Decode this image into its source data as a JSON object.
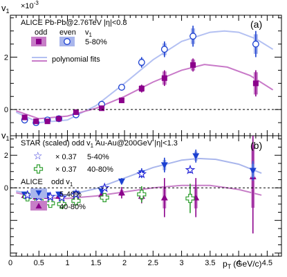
{
  "chart_data": [
    {
      "type": "scatter",
      "panel_label": "(a)",
      "ylabel": "v",
      "ylabel_sub": "1",
      "y_exponent": "×10",
      "y_exponent_power": "-3",
      "ylim": [
        -1.0,
        3.6
      ],
      "xlim": [
        0,
        4.75
      ],
      "y_ticks": [
        "0",
        "2"
      ],
      "y_tick_values": [
        0,
        2
      ],
      "header": "ALICE Pb-Pb@2.76TeV |η|<0.8",
      "legend": {
        "odd_label": "odd",
        "even_label": "even",
        "v1_label": "v",
        "v1_sub": "1",
        "centrality": "5-80%",
        "fit_label": "polynomial fits"
      },
      "colors": {
        "odd": "#8b008b",
        "odd_sys": "#c77ec7",
        "even": "#1a3fd1",
        "even_sys": "#a9b6ec",
        "odd_fit": "#c879c8",
        "even_fit": "#b3c0f2"
      },
      "series": [
        {
          "name": "odd",
          "marker": "filled-square",
          "x": [
            0.25,
            0.45,
            0.65,
            0.85,
            1.15,
            1.6,
            1.95,
            2.3,
            2.7,
            3.2,
            4.3
          ],
          "y": [
            -0.3,
            -0.45,
            -0.45,
            -0.35,
            -0.1,
            0.05,
            0.35,
            0.8,
            1.2,
            1.7,
            1.0
          ],
          "yerr": [
            0.05,
            0.05,
            0.05,
            0.05,
            0.05,
            0.06,
            0.1,
            0.15,
            0.3,
            0.25,
            0.5
          ]
        },
        {
          "name": "even",
          "marker": "open-circle",
          "x": [
            0.25,
            0.45,
            0.65,
            0.85,
            1.15,
            1.6,
            1.95,
            2.3,
            2.7,
            3.2,
            4.3
          ],
          "y": [
            -0.4,
            -0.5,
            -0.4,
            -0.35,
            -0.2,
            0.2,
            0.85,
            1.8,
            2.3,
            2.8,
            2.5
          ],
          "yerr": [
            0.06,
            0.06,
            0.06,
            0.06,
            0.06,
            0.07,
            0.12,
            0.2,
            0.3,
            0.4,
            0.5
          ]
        }
      ],
      "fits": [
        {
          "name": "odd",
          "x": [
            0.1,
            0.5,
            1.0,
            1.5,
            2.0,
            2.5,
            3.0,
            3.4,
            3.8,
            4.2,
            4.6
          ],
          "y": [
            -0.05,
            -0.35,
            -0.25,
            0.05,
            0.5,
            1.05,
            1.5,
            1.72,
            1.62,
            1.3,
            0.75
          ]
        },
        {
          "name": "even",
          "x": [
            0.1,
            0.5,
            1.0,
            1.5,
            2.0,
            2.5,
            3.0,
            3.5,
            3.75,
            4.0,
            4.3,
            4.6
          ],
          "y": [
            -0.1,
            -0.5,
            -0.4,
            0.15,
            1.0,
            1.9,
            2.6,
            2.95,
            3.0,
            2.95,
            2.7,
            2.3
          ]
        }
      ]
    },
    {
      "type": "scatter",
      "panel_label": "(b)",
      "ylabel": "v",
      "ylabel_sub": "1",
      "xlabel": "p",
      "xlabel_sub": "T",
      "xlabel_unit": "(GeV/c)",
      "ylim": [
        -4.2,
        3.2
      ],
      "xlim": [
        0,
        4.75
      ],
      "x_ticks": [
        "0",
        "0.5",
        "1",
        "1.5",
        "2",
        "2.5",
        "3",
        "3.5",
        "4",
        "4.5"
      ],
      "x_tick_values": [
        0,
        0.5,
        1,
        1.5,
        2,
        2.5,
        3,
        3.5,
        4,
        4.5
      ],
      "y_ticks": [
        "0",
        "2"
      ],
      "y_tick_values": [
        0,
        2
      ],
      "header": "STAR (scaled) odd v",
      "header_sub": "1",
      "header_tail": "Au-Au@200GeV |η|<1.3",
      "star_legend": [
        {
          "scale": "× 0.37",
          "centrality": "5-40%"
        },
        {
          "scale": "× 0.37",
          "centrality": "40-80%"
        }
      ],
      "alice_legend": {
        "title": "ALICE",
        "odd_label": "odd v",
        "odd_sub": "1",
        "entries": [
          {
            "centrality": "5-40%"
          },
          {
            "centrality": "40-80%"
          }
        ]
      },
      "colors": {
        "alice_central": "#1a3fd1",
        "alice_central_sys": "#a9b6ec",
        "alice_peripheral": "#8b008b",
        "alice_peripheral_sys": "#c77ec7",
        "star_central": "#2a2ad8",
        "star_peripheral": "#2e9e2e"
      },
      "series": [
        {
          "name": "5-40%",
          "marker": "down-triangle",
          "x": [
            0.25,
            0.45,
            0.65,
            0.85,
            1.15,
            1.6,
            1.95,
            2.3,
            2.7,
            3.25,
            4.25
          ],
          "y": [
            -0.4,
            -0.5,
            -0.45,
            -0.4,
            -0.35,
            -0.2,
            0.4,
            0.9,
            1.4,
            1.95,
            1.05
          ],
          "yerr": [
            0.08,
            0.08,
            0.08,
            0.1,
            0.1,
            0.15,
            0.2,
            0.3,
            0.45,
            0.4,
            0.6
          ]
        },
        {
          "name": "40-80%",
          "marker": "up-triangle",
          "x": [
            0.25,
            0.45,
            0.65,
            0.85,
            1.15,
            1.6,
            1.95,
            2.3,
            2.7,
            3.25,
            4.25
          ],
          "y": [
            -0.45,
            -0.55,
            -0.5,
            -0.5,
            -0.55,
            -0.4,
            -0.3,
            -0.5,
            -0.6,
            -0.6,
            0.7
          ],
          "yerr": [
            0.15,
            0.15,
            0.15,
            0.2,
            0.2,
            0.25,
            0.35,
            0.45,
            1.2,
            1.2,
            3.5
          ]
        },
        {
          "name": "STAR 5-40%",
          "marker": "open-star",
          "x": [
            0.3,
            0.5,
            0.7,
            0.9,
            1.15,
            1.65,
            2.3,
            3.15
          ],
          "y": [
            -0.45,
            -0.55,
            -0.55,
            -0.6,
            -0.4,
            0.0,
            0.85,
            1.1
          ],
          "yerr": [
            0.05,
            0.05,
            0.05,
            0.05,
            0.07,
            0.1,
            0.15,
            0.2
          ]
        },
        {
          "name": "STAR 40-80%",
          "marker": "open-cross",
          "x": [
            0.3,
            0.5,
            0.7,
            0.9,
            1.15,
            1.65,
            2.3,
            3.15
          ],
          "y": [
            -0.55,
            -0.8,
            -0.95,
            -1.0,
            -0.8,
            -0.6,
            -0.4,
            -0.65
          ],
          "yerr": [
            0.08,
            0.08,
            0.08,
            0.1,
            0.12,
            0.2,
            0.5,
            0.9
          ]
        }
      ],
      "fits": [
        {
          "name": "5-40%",
          "x": [
            0.1,
            0.5,
            1.0,
            1.5,
            2.0,
            2.5,
            3.0,
            3.3,
            3.6,
            4.0,
            4.4
          ],
          "y": [
            -0.2,
            -0.5,
            -0.45,
            -0.05,
            0.6,
            1.25,
            1.7,
            1.8,
            1.75,
            1.45,
            0.9
          ]
        },
        {
          "name": "40-80%",
          "x": [
            0.1,
            0.5,
            1.0,
            1.5,
            2.0,
            2.5,
            3.0,
            3.5,
            4.0,
            4.4
          ],
          "y": [
            -0.3,
            -0.6,
            -0.65,
            -0.5,
            -0.25,
            0.0,
            0.15,
            0.15,
            -0.1,
            -0.45
          ]
        }
      ]
    }
  ]
}
